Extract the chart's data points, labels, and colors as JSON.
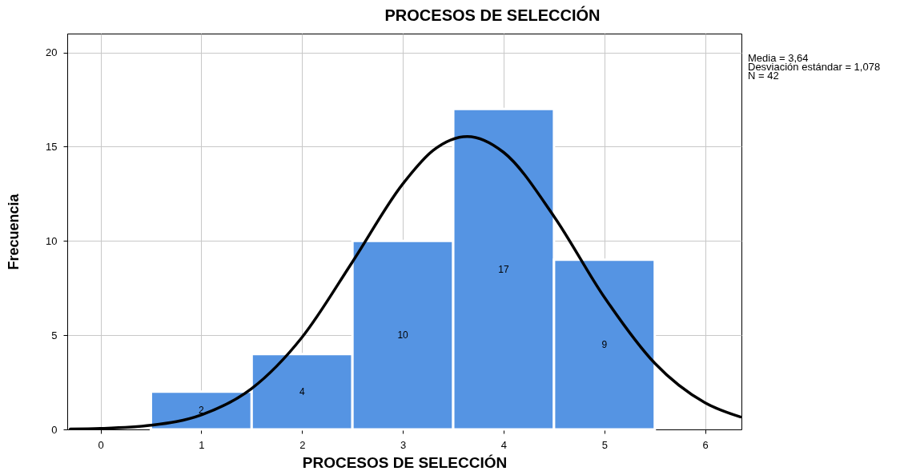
{
  "chart_data": {
    "type": "histogram",
    "title": "PROCESOS DE SELECCIÓN",
    "xlabel": "PROCESOS DE SELECCIÓN",
    "ylabel": "Frecuencia",
    "series": [
      {
        "bins": [
          0.5,
          1.5,
          2.5,
          3.5,
          4.5,
          5.5
        ],
        "values": [
          2,
          4,
          10,
          17,
          9
        ],
        "value_labels": [
          "2",
          "4",
          "10",
          "17",
          "9"
        ],
        "color": "#5594e3"
      },
      {
        "type": "line",
        "x": [
          -0.3,
          0,
          0.5,
          1,
          1.5,
          2,
          2.5,
          3,
          3.3,
          3.64,
          4,
          4.5,
          5,
          5.5,
          6,
          6.35
        ],
        "values": [
          0.02,
          0.05,
          0.22,
          0.77,
          2.17,
          4.89,
          8.89,
          13.03,
          14.8,
          15.54,
          14.7,
          11.3,
          7.01,
          3.51,
          1.41,
          0.66
        ],
        "color": "#000000"
      }
    ],
    "xlim": [
      -0.33,
      6.36
    ],
    "xticks": [
      0,
      1,
      2,
      3,
      4,
      5,
      6
    ],
    "ylim": [
      0,
      21
    ],
    "yticks": [
      0,
      5,
      10,
      15,
      20
    ],
    "grid": true,
    "annotations": [
      "Media = 3,64",
      "Desviación estándar = 1,078",
      "N = 42"
    ]
  }
}
